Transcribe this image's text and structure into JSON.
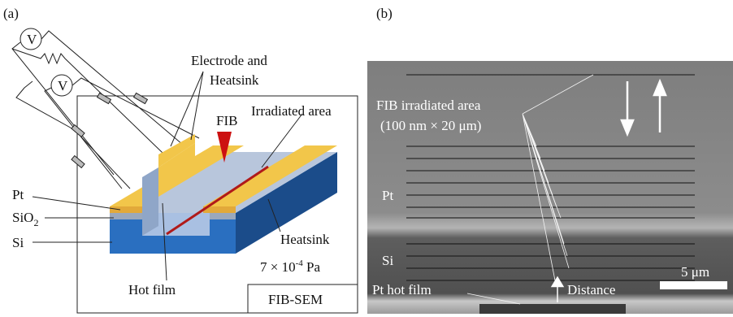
{
  "panel_a": {
    "label": "(a)",
    "voltmeters": [
      "V",
      "V"
    ],
    "electrode_label": [
      "Electrode and",
      "Heatsink"
    ],
    "fib": "FIB",
    "irradiated": "Irradiated area",
    "pt": "Pt",
    "sio2": {
      "base": "SiO",
      "sub": "2"
    },
    "si": "Si",
    "heatsink": "Heatsink",
    "pressure": {
      "base": "7 × 10",
      "exp": "-4",
      "unit": " Pa"
    },
    "hot_film": "Hot film",
    "chamber": "FIB-SEM"
  },
  "panel_b": {
    "label": "(b)",
    "irradiated": [
      "FIB irradiated area",
      "(100 nm × 20 μm)"
    ],
    "pt": "Pt",
    "si": "Si",
    "scale": "5 μm",
    "hot_film": "Pt hot film",
    "distance": "Distance"
  }
}
